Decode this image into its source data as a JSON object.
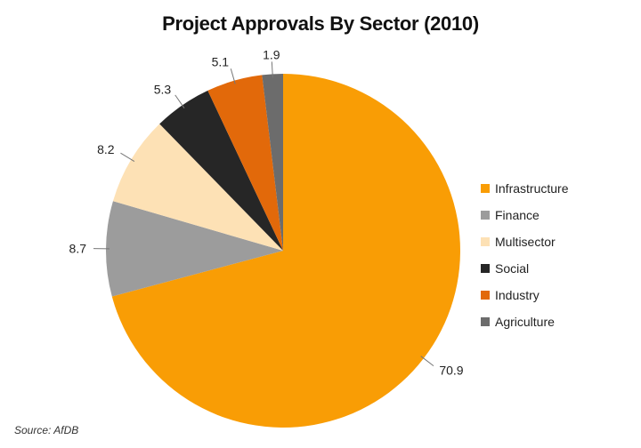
{
  "chart_data": {
    "type": "pie",
    "title": "Project Approvals By Sector (2010)",
    "slices": [
      {
        "name": "Infrastructure",
        "value": 70.9,
        "label": "70.9",
        "color": "#f99d05"
      },
      {
        "name": "Finance",
        "value": 8.7,
        "label": "8.7",
        "color": "#9c9c9c"
      },
      {
        "name": "Multisector",
        "value": 8.2,
        "label": "8.2",
        "color": "#fde1b5"
      },
      {
        "name": "Social",
        "value": 5.3,
        "label": "5.3",
        "color": "#262626"
      },
      {
        "name": "Industry",
        "value": 5.1,
        "label": "5.1",
        "color": "#e2690a"
      },
      {
        "name": "Agriculture",
        "value": 1.9,
        "label": "1.9",
        "color": "#6c6c6c"
      }
    ],
    "legend_position": "right",
    "source": "Source: AfDB"
  }
}
